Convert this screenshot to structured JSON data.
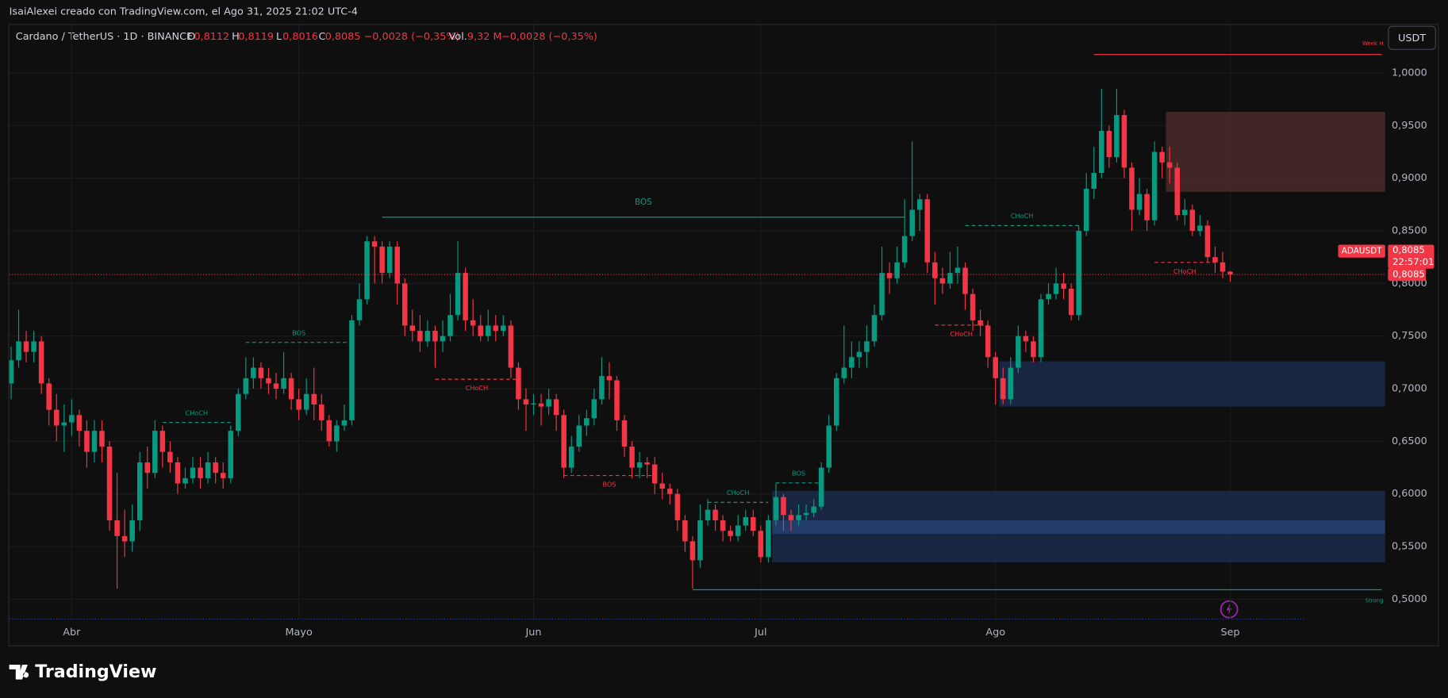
{
  "header": {
    "attribution": "IsaiAlexei creado con TradingView.com, el Ago 31, 2025 21:02 UTC-4",
    "symbol": "Cardano / TetherUS · 1D · BINANCE",
    "ohlc": [
      {
        "label": "O",
        "value": "0,8112"
      },
      {
        "label": "H",
        "value": "0,8119"
      },
      {
        "label": "L",
        "value": "0,8016"
      },
      {
        "label": "C",
        "value": "0,8085"
      }
    ],
    "change": "−0,0028 (−0,35%)",
    "volume_label": "Vol.",
    "volume": "9,32 M",
    "volume_change": "−0,0028 (−0,35%)",
    "currency_button": "USDT"
  },
  "chart_data": {
    "type": "candlestick",
    "up_color": "#089981",
    "down_color": "#f23645",
    "grid": true,
    "categories": [
      null,
      null,
      null,
      null,
      null,
      null,
      null,
      null,
      "Abr",
      null,
      null,
      null,
      null,
      null,
      null,
      null,
      null,
      null,
      null,
      null,
      null,
      null,
      null,
      null,
      null,
      null,
      null,
      null,
      null,
      null,
      null,
      null,
      null,
      null,
      null,
      null,
      null,
      null,
      "Mayo",
      null,
      null,
      null,
      null,
      null,
      null,
      null,
      null,
      null,
      null,
      null,
      null,
      null,
      null,
      null,
      null,
      null,
      null,
      null,
      null,
      null,
      null,
      null,
      null,
      null,
      null,
      null,
      null,
      null,
      null,
      "Jun",
      null,
      null,
      null,
      null,
      null,
      null,
      null,
      null,
      null,
      null,
      null,
      null,
      null,
      null,
      null,
      null,
      null,
      null,
      null,
      null,
      null,
      null,
      null,
      null,
      null,
      null,
      null,
      null,
      null,
      "Jul",
      null,
      null,
      null,
      null,
      null,
      null,
      null,
      null,
      null,
      null,
      null,
      null,
      null,
      null,
      null,
      null,
      null,
      null,
      null,
      null,
      null,
      null,
      null,
      null,
      null,
      null,
      null,
      null,
      null,
      null,
      "Ago",
      null,
      null,
      null,
      null,
      null,
      null,
      null,
      null,
      null,
      null,
      null,
      null,
      null,
      null,
      null,
      null,
      null,
      null,
      null,
      null,
      null,
      null,
      null,
      null,
      null,
      null,
      null,
      null,
      null,
      null,
      "Sep"
    ],
    "open": [
      0.705,
      0.727,
      0.745,
      0.735,
      0.745,
      0.705,
      0.68,
      0.665,
      0.668,
      0.675,
      0.66,
      0.64,
      0.66,
      0.645,
      0.575,
      0.56,
      0.555,
      0.575,
      0.63,
      0.62,
      0.66,
      0.64,
      0.63,
      0.61,
      0.615,
      0.625,
      0.615,
      0.63,
      0.62,
      0.615,
      0.66,
      0.695,
      0.71,
      0.72,
      0.71,
      0.705,
      0.7,
      0.71,
      0.69,
      0.68,
      0.695,
      0.685,
      0.67,
      0.65,
      0.665,
      0.67,
      0.765,
      0.785,
      0.84,
      0.835,
      0.81,
      0.835,
      0.8,
      0.76,
      0.755,
      0.745,
      0.755,
      0.745,
      0.75,
      0.77,
      0.81,
      0.765,
      0.76,
      0.75,
      0.76,
      0.755,
      0.76,
      0.72,
      0.69,
      0.685,
      0.686,
      0.683,
      0.69,
      0.675,
      0.625,
      0.645,
      0.665,
      0.672,
      0.69,
      0.712,
      0.708,
      0.67,
      0.645,
      0.625,
      0.63,
      0.628,
      0.61,
      0.605,
      0.6,
      0.575,
      0.555,
      0.537,
      0.575,
      0.585,
      0.575,
      0.565,
      0.56,
      0.57,
      0.578,
      0.565,
      0.54,
      0.575,
      0.597,
      0.58,
      0.575,
      0.58,
      0.582,
      0.588,
      0.625,
      0.665,
      0.71,
      0.72,
      0.73,
      0.735,
      0.745,
      0.77,
      0.81,
      0.805,
      0.82,
      0.845,
      0.87,
      0.88,
      0.82,
      0.805,
      0.8,
      0.81,
      0.815,
      0.79,
      0.765,
      0.76,
      0.73,
      0.71,
      0.69,
      0.72,
      0.75,
      0.745,
      0.73,
      0.785,
      0.79,
      0.8,
      0.795,
      0.77,
      0.85,
      0.89,
      0.905,
      0.945,
      0.92,
      0.96,
      0.91,
      0.87,
      0.885,
      0.86,
      0.925,
      0.915,
      0.91,
      0.865,
      0.87,
      0.85,
      0.855,
      0.825,
      0.82,
      0.8112
    ],
    "high": [
      0.74,
      0.775,
      0.755,
      0.755,
      0.75,
      0.71,
      0.695,
      0.685,
      0.69,
      0.68,
      0.67,
      0.67,
      0.67,
      0.65,
      0.62,
      0.585,
      0.59,
      0.64,
      0.645,
      0.67,
      0.665,
      0.65,
      0.635,
      0.625,
      0.635,
      0.635,
      0.64,
      0.635,
      0.63,
      0.665,
      0.7,
      0.73,
      0.73,
      0.725,
      0.72,
      0.715,
      0.735,
      0.715,
      0.7,
      0.71,
      0.72,
      0.695,
      0.675,
      0.67,
      0.685,
      0.77,
      0.8,
      0.845,
      0.845,
      0.84,
      0.84,
      0.84,
      0.805,
      0.775,
      0.77,
      0.765,
      0.76,
      0.765,
      0.79,
      0.84,
      0.815,
      0.785,
      0.77,
      0.775,
      0.77,
      0.77,
      0.765,
      0.725,
      0.7,
      0.695,
      0.695,
      0.7,
      0.695,
      0.68,
      0.655,
      0.675,
      0.68,
      0.7,
      0.73,
      0.725,
      0.712,
      0.675,
      0.65,
      0.64,
      0.635,
      0.635,
      0.62,
      0.61,
      0.605,
      0.58,
      0.56,
      0.59,
      0.595,
      0.59,
      0.58,
      0.57,
      0.58,
      0.585,
      0.585,
      0.57,
      0.58,
      0.61,
      0.6,
      0.585,
      0.59,
      0.59,
      0.595,
      0.63,
      0.675,
      0.715,
      0.76,
      0.745,
      0.745,
      0.76,
      0.78,
      0.835,
      0.82,
      0.835,
      0.88,
      0.935,
      0.885,
      0.885,
      0.83,
      0.815,
      0.83,
      0.835,
      0.82,
      0.795,
      0.775,
      0.765,
      0.735,
      0.72,
      0.73,
      0.76,
      0.755,
      0.75,
      0.79,
      0.8,
      0.815,
      0.81,
      0.8,
      0.855,
      0.905,
      0.93,
      0.985,
      0.95,
      0.985,
      0.965,
      0.915,
      0.9,
      0.89,
      0.935,
      0.93,
      0.93,
      0.915,
      0.88,
      0.875,
      0.865,
      0.86,
      0.835,
      0.83,
      0.8119
    ],
    "low": [
      0.69,
      0.72,
      0.725,
      0.725,
      0.695,
      0.665,
      0.65,
      0.64,
      0.655,
      0.645,
      0.625,
      0.63,
      0.63,
      0.565,
      0.51,
      0.54,
      0.545,
      0.565,
      0.605,
      0.615,
      0.625,
      0.62,
      0.6,
      0.605,
      0.61,
      0.605,
      0.61,
      0.61,
      0.605,
      0.61,
      0.655,
      0.69,
      0.7,
      0.7,
      0.695,
      0.69,
      0.695,
      0.68,
      0.67,
      0.675,
      0.67,
      0.66,
      0.645,
      0.64,
      0.66,
      0.665,
      0.76,
      0.78,
      0.8,
      0.8,
      0.805,
      0.78,
      0.75,
      0.745,
      0.735,
      0.74,
      0.72,
      0.735,
      0.745,
      0.765,
      0.755,
      0.75,
      0.745,
      0.745,
      0.745,
      0.75,
      0.71,
      0.68,
      0.66,
      0.675,
      0.665,
      0.675,
      0.66,
      0.615,
      0.62,
      0.64,
      0.655,
      0.665,
      0.685,
      0.69,
      0.66,
      0.635,
      0.615,
      0.615,
      0.615,
      0.6,
      0.595,
      0.59,
      0.565,
      0.545,
      0.51,
      0.53,
      0.57,
      0.565,
      0.555,
      0.555,
      0.555,
      0.565,
      0.56,
      0.535,
      0.535,
      0.57,
      0.565,
      0.565,
      0.57,
      0.575,
      0.578,
      0.585,
      0.62,
      0.66,
      0.705,
      0.71,
      0.72,
      0.72,
      0.74,
      0.765,
      0.79,
      0.8,
      0.815,
      0.84,
      0.85,
      0.81,
      0.78,
      0.79,
      0.795,
      0.8,
      0.775,
      0.755,
      0.75,
      0.72,
      0.685,
      0.685,
      0.685,
      0.715,
      0.735,
      0.725,
      0.725,
      0.78,
      0.785,
      0.785,
      0.765,
      0.765,
      0.845,
      0.88,
      0.9,
      0.91,
      0.915,
      0.9,
      0.85,
      0.865,
      0.85,
      0.855,
      0.9,
      0.895,
      0.86,
      0.855,
      0.845,
      0.845,
      0.82,
      0.81,
      0.805,
      0.8016
    ],
    "close": [
      0.727,
      0.745,
      0.735,
      0.745,
      0.705,
      0.68,
      0.665,
      0.668,
      0.675,
      0.66,
      0.64,
      0.66,
      0.645,
      0.575,
      0.56,
      0.555,
      0.575,
      0.63,
      0.62,
      0.66,
      0.64,
      0.63,
      0.61,
      0.615,
      0.625,
      0.615,
      0.63,
      0.62,
      0.615,
      0.66,
      0.695,
      0.71,
      0.72,
      0.71,
      0.705,
      0.7,
      0.71,
      0.69,
      0.68,
      0.695,
      0.685,
      0.67,
      0.65,
      0.665,
      0.67,
      0.765,
      0.785,
      0.84,
      0.835,
      0.81,
      0.835,
      0.8,
      0.76,
      0.755,
      0.745,
      0.755,
      0.745,
      0.75,
      0.77,
      0.81,
      0.765,
      0.76,
      0.75,
      0.76,
      0.755,
      0.76,
      0.72,
      0.69,
      0.685,
      0.686,
      0.683,
      0.69,
      0.675,
      0.625,
      0.645,
      0.665,
      0.672,
      0.69,
      0.712,
      0.708,
      0.67,
      0.645,
      0.625,
      0.63,
      0.628,
      0.61,
      0.605,
      0.6,
      0.575,
      0.555,
      0.537,
      0.575,
      0.585,
      0.575,
      0.565,
      0.56,
      0.57,
      0.578,
      0.565,
      0.54,
      0.575,
      0.597,
      0.58,
      0.575,
      0.58,
      0.582,
      0.588,
      0.625,
      0.665,
      0.71,
      0.72,
      0.73,
      0.735,
      0.745,
      0.77,
      0.81,
      0.805,
      0.82,
      0.845,
      0.87,
      0.88,
      0.82,
      0.805,
      0.8,
      0.81,
      0.815,
      0.79,
      0.765,
      0.76,
      0.73,
      0.71,
      0.69,
      0.72,
      0.75,
      0.745,
      0.73,
      0.785,
      0.79,
      0.8,
      0.795,
      0.77,
      0.85,
      0.89,
      0.905,
      0.945,
      0.92,
      0.96,
      0.91,
      0.87,
      0.885,
      0.86,
      0.925,
      0.915,
      0.91,
      0.865,
      0.87,
      0.85,
      0.855,
      0.825,
      0.82,
      0.8112,
      0.8085
    ],
    "ylim": [
      0.4816,
      1.0456
    ],
    "yticks": [
      {
        "value": 0.5,
        "label": "0,5000"
      },
      {
        "value": 0.55,
        "label": "0,5500"
      },
      {
        "value": 0.6,
        "label": "0,6000"
      },
      {
        "value": 0.65,
        "label": "0,6500"
      },
      {
        "value": 0.7,
        "label": "0,7000"
      },
      {
        "value": 0.75,
        "label": "0,7500"
      },
      {
        "value": 0.8,
        "label": "0,8000"
      },
      {
        "value": 0.85,
        "label": "0,8500"
      },
      {
        "value": 0.9,
        "label": "0,9000"
      },
      {
        "value": 0.95,
        "label": "0,9500"
      },
      {
        "value": 1.0,
        "label": "1,0000"
      }
    ],
    "boxes": [
      {
        "start": 153,
        "top": 0.963,
        "bottom": 0.887,
        "color": "#4a2a29"
      },
      {
        "start": 131,
        "top": 0.726,
        "bottom": 0.683,
        "color": "#1b2a4b"
      },
      {
        "start": 101,
        "top": 0.603,
        "bottom": 0.535,
        "color": "#1b2a4b"
      },
      {
        "start": 101,
        "top": 0.575,
        "bottom": 0.562,
        "color": "#25406f"
      }
    ],
    "levels": [
      {
        "label": "BOS",
        "value": 0.863,
        "from": 49,
        "to": 118,
        "color": "#089981",
        "dashed": false
      },
      {
        "label": "BOS",
        "value": 0.744,
        "from": 31,
        "to": 45,
        "color": "#089981",
        "dashed": true
      },
      {
        "label": "CHoCH",
        "value": 0.668,
        "from": 20,
        "to": 29,
        "color": "#089981",
        "dashed": true
      },
      {
        "label": "CHoCH",
        "value": 0.709,
        "from": 56,
        "to": 67,
        "color": "#f23645",
        "dashed": true
      },
      {
        "label": "BOS",
        "value": 0.6175,
        "from": 73,
        "to": 85,
        "color": "#f23645",
        "dashed": true
      },
      {
        "label": "CHoCH",
        "value": 0.592,
        "from": 92,
        "to": 100,
        "color": "#089981",
        "dashed": true
      },
      {
        "label": "BOS",
        "value": 0.6105,
        "from": 101,
        "to": 107,
        "color": "#089981",
        "dashed": true
      },
      {
        "label": "CHoCH",
        "value": 0.7605,
        "from": 122,
        "to": 129,
        "color": "#f23645",
        "dashed": true
      },
      {
        "label": "CHoCH",
        "value": 0.855,
        "from": 126,
        "to": 141,
        "color": "#089981",
        "dashed": true
      },
      {
        "label": "CHoCH",
        "value": 0.82,
        "from": 151,
        "to": 159,
        "color": "#f23645",
        "dashed": true
      },
      {
        "label": "Week H",
        "value": 1.0175,
        "from": 143,
        "extend_right": true,
        "color": "#f23645",
        "dashed": false
      },
      {
        "label": "Strong",
        "value": 0.509,
        "from": 90,
        "extend_right": true,
        "color": "#089981",
        "dashed": false
      }
    ],
    "last_price": {
      "symbol": "ADAUSDT",
      "value": 0.8085,
      "label": "0,8085",
      "countdown": "22:57:01",
      "color": "#f23645"
    }
  },
  "footer": {
    "logo": "TradingView"
  }
}
